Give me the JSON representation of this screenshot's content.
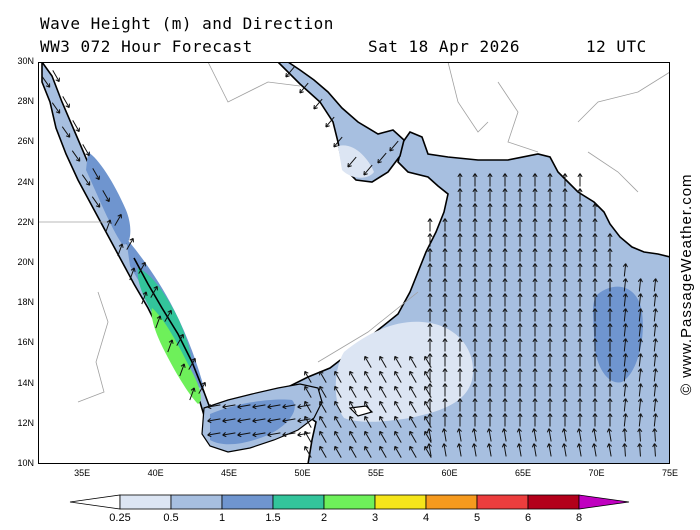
{
  "header": {
    "title": "Wave Height (m) and Direction",
    "model_line": "WW3 072 Hour Forecast",
    "date": "Sat 18 Apr 2026",
    "time": "12 UTC"
  },
  "credit": "© www.PassageWeather.com",
  "axes": {
    "lat_labels": [
      "30N",
      "28N",
      "26N",
      "24N",
      "22N",
      "20N",
      "18N",
      "16N",
      "14N",
      "12N",
      "10N"
    ],
    "lon_labels": [
      "35E",
      "40E",
      "45E",
      "50E",
      "55E",
      "60E",
      "65E",
      "70E",
      "75E"
    ],
    "lat_range": [
      10,
      30
    ],
    "lon_range": [
      32,
      75
    ]
  },
  "legend": {
    "labels": [
      "0.25",
      "0.5",
      "1",
      "1.5",
      "2",
      "3",
      "4",
      "5",
      "6",
      "8"
    ],
    "colors": [
      "#ffffff",
      "#dce5f3",
      "#a7bfe0",
      "#6f95cf",
      "#33c49b",
      "#6ef05a",
      "#f5e51a",
      "#f69a1e",
      "#ec3d3d",
      "#b3001a",
      "#c000c0"
    ]
  },
  "colors": {
    "land": "#ffffff",
    "sea_calm": "#dce5f3",
    "sea_light": "#a7bfe0",
    "sea_moderate": "#6f95cf",
    "sea_rough": "#33c49b",
    "sea_very_rough": "#6ef05a",
    "arrow": "#111111"
  }
}
